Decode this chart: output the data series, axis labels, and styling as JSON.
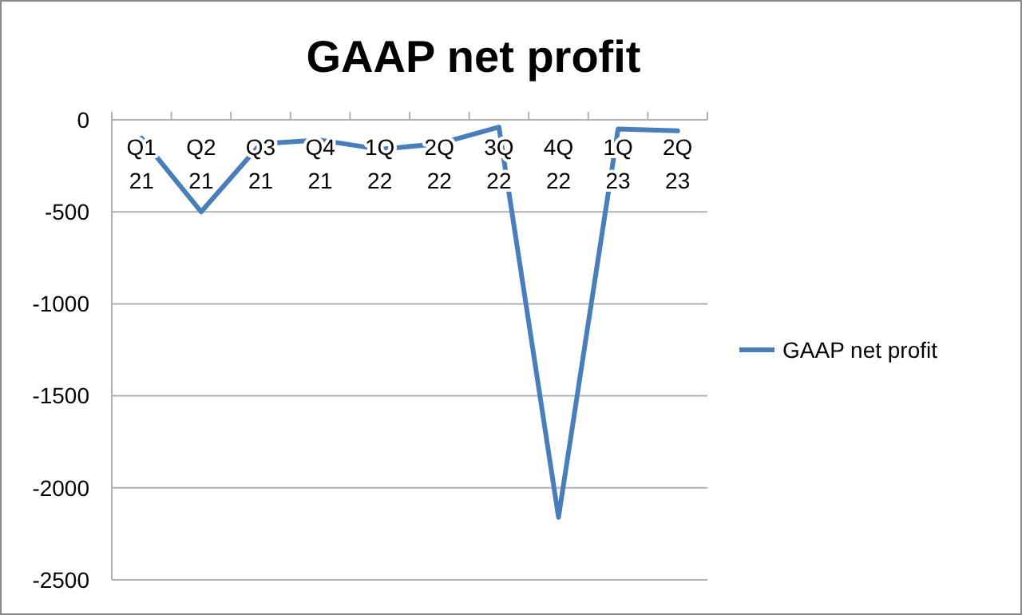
{
  "chart_data": {
    "type": "line",
    "title": "GAAP net profit",
    "categories": [
      "Q1 21",
      "Q2 21",
      "Q3 21",
      "Q4 21",
      "1Q 22",
      "2Q 22",
      "3Q 22",
      "4Q 22",
      "1Q 23",
      "2Q 23"
    ],
    "series": [
      {
        "name": "GAAP net profit",
        "color": "#4a7ebb",
        "values": [
          -100,
          -500,
          -130,
          -110,
          -160,
          -130,
          -40,
          -2160,
          -50,
          -60
        ]
      }
    ],
    "ylim": [
      -2500,
      0
    ],
    "yticks": [
      -2500,
      -2000,
      -1500,
      -1000,
      -500,
      0
    ],
    "grid": "y",
    "legend": "right",
    "marker": "none",
    "line_style": "solid"
  }
}
